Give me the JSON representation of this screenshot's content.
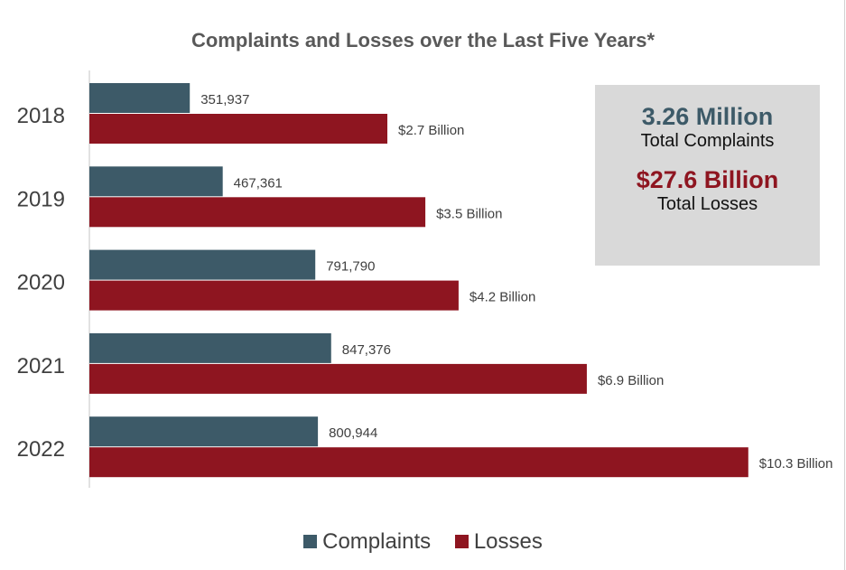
{
  "chart_data": {
    "type": "bar",
    "orientation": "horizontal",
    "title": "Complaints and Losses over the Last Five Years*",
    "categories": [
      "2018",
      "2019",
      "2020",
      "2021",
      "2022"
    ],
    "series": [
      {
        "name": "Complaints",
        "values": [
          351937,
          467361,
          791790,
          847376,
          800944
        ],
        "labels": [
          "351,937",
          "467,361",
          "791,790",
          "847,376",
          "800,944"
        ],
        "color": "#3d5a68"
      },
      {
        "name": "Losses",
        "values": [
          2.7,
          3.5,
          4.2,
          6.9,
          10.3
        ],
        "unit": "Billion USD",
        "labels": [
          "$2.7 Billion",
          "$3.5 Billion",
          "$4.2 Billion",
          "$6.9 Billion",
          "$10.3 Billion"
        ],
        "color": "#8e1520"
      }
    ],
    "legend": "bottom",
    "grid": false
  },
  "summary": {
    "complaints_value": "3.26 Million",
    "complaints_label": "Total Complaints",
    "losses_value": "$27.6 Billion",
    "losses_label": "Total Losses"
  }
}
